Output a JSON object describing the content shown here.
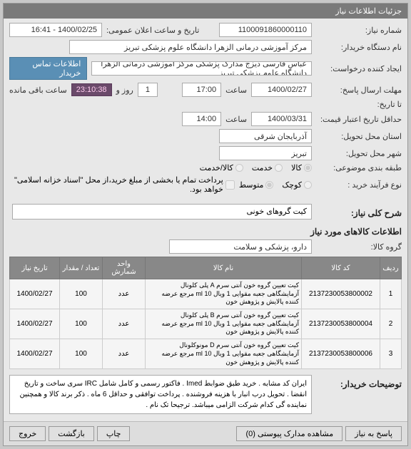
{
  "header": {
    "title": "جزئیات اطلاعات نیاز"
  },
  "fields": {
    "need_no_label": "شماره نیاز:",
    "need_no": "1100091860000110",
    "announce_label": "تاریخ و ساعت اعلان عمومی:",
    "announce_value": "1400/02/25 - 16:41",
    "buyer_name_label": "نام دستگاه خریدار:",
    "buyer_name": "مرکز آموزشی درمانی الزهرا دانشگاه علوم پزشکی تبریز",
    "creator_label": "ایجاد کننده درخواست:",
    "creator_value": "عباس  فارسی دیزج  مدارک پزشکی  مرکز آموزشی درمانی الزهرا دانشگاه علوم پزشکی تبریز",
    "contact_btn": "اطلاعات تماس خریدار",
    "deadline_label": "مهلت ارسال پاسخ:",
    "deadline_date": "1400/02/27",
    "time_label": "ساعت",
    "deadline_time": "17:00",
    "days_count": "1",
    "days_and": "روز و",
    "countdown": "23:10:38",
    "remaining": "ساعت باقی مانده",
    "until_label": "تا تاریخ:",
    "min_valid_label": "حداقل تاریخ اعتبار قیمت:",
    "min_valid_date": "1400/03/31",
    "min_valid_time": "14:00",
    "province_label": "استان محل تحویل:",
    "province": "آذربایجان شرقی",
    "city_label": "شهر محل تحویل:",
    "city": "تبریز",
    "category_label": "طبقه بندی موضوعی:",
    "cat_goods": "کالا",
    "cat_service": "خدمت",
    "cat_goods_service": "کالا/خدمت",
    "process_label": "نوع فرآیند خرید :",
    "proc_small": "کوچک",
    "proc_med": "متوسط",
    "pay_note": "پرداخت تمام یا بخشی از مبلغ خرید،از محل \"اسناد خزانه اسلامی\" خواهد بود.",
    "main_desc_label": "شرح کلی نیاز:",
    "main_desc": "کیت گروهای خونی",
    "items_section": "اطلاعات کالاهای مورد نیاز",
    "group_label": "گروه کالا:",
    "group_value": "دارو، پزشکی و سلامت",
    "explain_label": "توضیحات خریدار:",
    "explain_text": "ایران کد مشابه . خرید طبق ضوابط Imed . فاکتور رسمی و کامل شامل IRC سری ساخت و تاریخ انقضا . تحویل درب انبار با هزینه فروشنده . پرداخت توافقی و حداقل 6 ماه . ذکر برند کالا و همچنین نماینده گی کدام شرکت الزامی میباشد. ترجیحا تک نام ."
  },
  "table": {
    "headers": [
      "ردیف",
      "کد کالا",
      "نام کالا",
      "واحد شمارش",
      "تعداد / مقدار",
      "تاریخ نیاز"
    ],
    "rows": [
      {
        "idx": "1",
        "code": "2137230053800002",
        "name": "کیت تعیین گروه خون آنتی سرم A پلی کلونال آزمایشگاهی جعبه مقوایی 1 ویال 10 ml مرجع عرضه کننده پالایش و پژوهش خون",
        "unit": "عدد",
        "qty": "100",
        "date": "1400/02/27"
      },
      {
        "idx": "2",
        "code": "2137230053800004",
        "name": "کیت تعیین گروه خون آنتی سرم B پلی کلونال آزمایشگاهی جعبه مقوایی 1 ویال 10 ml مرجع عرضه کننده پالایش و پژوهش خون",
        "unit": "عدد",
        "qty": "100",
        "date": "1400/02/27"
      },
      {
        "idx": "3",
        "code": "2137230053800006",
        "name": "کیت تعیین گروه خون آنتی سرم D مونوکلونال آزمایشگاهی جعبه مقوایی 1 ویال 10 ml مرجع عرضه کننده پالایش و پژوهش خون",
        "unit": "عدد",
        "qty": "100",
        "date": "1400/02/27"
      }
    ]
  },
  "footer": {
    "attach_btn": "مشاهده مدارک پیوستی (0)",
    "reply_btn": "پاسخ به نیاز",
    "print_btn": "چاپ",
    "back_btn": "بازگشت",
    "exit_btn": "خروج"
  }
}
